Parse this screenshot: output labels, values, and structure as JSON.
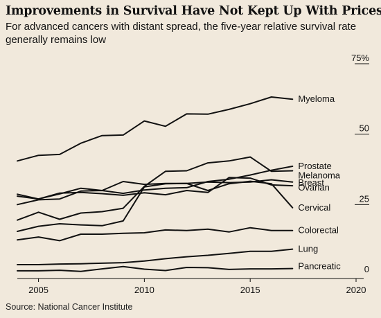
{
  "header": {
    "title": "Improvements in Survival Have Not Kept Up With Prices",
    "subtitle": "For advanced cancers with distant spread, the five-year relative survival rate generally remains low"
  },
  "footer": {
    "source": "Source: National Cancer Institute"
  },
  "colors": {
    "background": "#f1e9dc",
    "line": "#111111",
    "axis": "#111111"
  },
  "chart_data": {
    "type": "line",
    "title": "Improvements in Survival Have Not Kept Up With Prices",
    "xlabel": "",
    "ylabel": "",
    "xlim": [
      2004,
      2020
    ],
    "ylim": [
      0,
      75
    ],
    "x_ticks": [
      2005,
      2010,
      2015,
      2020
    ],
    "y_ticks": [
      0,
      25,
      50,
      75
    ],
    "y_tick_labels": [
      "0",
      "25",
      "50",
      "75%"
    ],
    "grid": false,
    "legend": "direct labels at line ends",
    "x": [
      2004,
      2005,
      2006,
      2007,
      2008,
      2009,
      2010,
      2011,
      2012,
      2013,
      2014,
      2015,
      2016,
      2017
    ],
    "series": [
      {
        "name": "Myeloma",
        "values": [
          40.5,
          42.5,
          42.8,
          46.8,
          49.5,
          49.7,
          54.7,
          52.8,
          57.2,
          57.1,
          58.8,
          60.8,
          63.2,
          62.4
        ]
      },
      {
        "name": "Prostate",
        "values": [
          25.0,
          26.7,
          27.0,
          29.8,
          30.0,
          29.0,
          30.2,
          30.8,
          31.0,
          33.2,
          34.0,
          35.5,
          37.2,
          38.6
        ]
      },
      {
        "name": "Melanoma",
        "values": [
          19.5,
          22.3,
          19.8,
          22.0,
          22.5,
          23.7,
          31.5,
          36.8,
          37.0,
          39.8,
          40.5,
          41.9,
          36.8,
          37.0
        ]
      },
      {
        "name": "Breast",
        "values": [
          28.7,
          27.0,
          28.8,
          30.8,
          30.0,
          33.2,
          32.2,
          32.5,
          32.5,
          33.0,
          32.8,
          33.0,
          33.8,
          33.0
        ]
      },
      {
        "name": "Ovarian",
        "values": [
          28.0,
          27.0,
          29.1,
          29.3,
          28.9,
          28.3,
          29.2,
          28.5,
          30.0,
          29.3,
          34.6,
          34.4,
          32.0,
          31.7
        ]
      },
      {
        "name": "Cervical",
        "values": [
          15.5,
          17.3,
          18.2,
          17.8,
          17.5,
          19.2,
          31.3,
          32.4,
          32.5,
          30.0,
          32.4,
          33.3,
          32.4,
          23.9
        ]
      },
      {
        "name": "Colorectal",
        "values": [
          12.5,
          13.5,
          12.2,
          14.5,
          14.5,
          14.8,
          15.0,
          16.0,
          15.8,
          16.3,
          15.3,
          16.8,
          15.8,
          15.8
        ]
      },
      {
        "name": "Lung",
        "values": [
          3.7,
          3.7,
          3.9,
          4.0,
          4.2,
          4.4,
          5.0,
          5.8,
          6.5,
          7.0,
          7.7,
          8.4,
          8.4,
          9.2
        ]
      },
      {
        "name": "Pancreatic",
        "values": [
          1.5,
          1.5,
          1.7,
          1.3,
          2.2,
          3.0,
          2.1,
          1.6,
          2.7,
          2.6,
          2.0,
          2.2,
          2.2,
          2.3
        ]
      }
    ]
  }
}
